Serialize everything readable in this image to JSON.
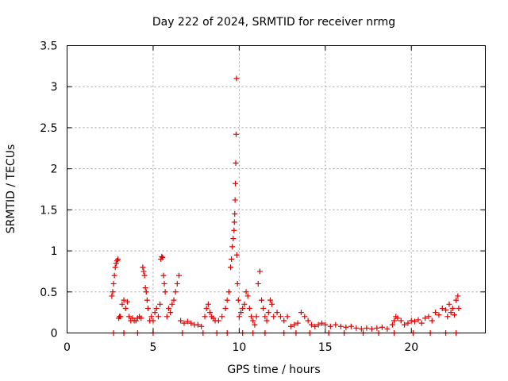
{
  "chart_data": {
    "type": "scatter",
    "title": "Day 222 of 2024, SRMTID for receiver nrmg",
    "xlabel": "GPS time / hours",
    "ylabel": "SRMTID / TECUs",
    "xlim": [
      0,
      24.3
    ],
    "ylim": [
      0,
      3.5
    ],
    "xticks": [
      0,
      5,
      10,
      15,
      20
    ],
    "xtick_labels": [
      "0",
      "5",
      "10",
      "15",
      "20"
    ],
    "yticks": [
      0,
      0.5,
      1,
      1.5,
      2,
      2.5,
      3,
      3.5
    ],
    "ytick_labels": [
      "0",
      "0.5",
      "1",
      "1.5",
      "2",
      "2.5",
      "3",
      "3.5"
    ],
    "grid": true,
    "marker": "+",
    "marker_color": "#e00000",
    "series": [
      {
        "name": "SRMTID",
        "x": [
          2.6,
          2.65,
          2.7,
          2.75,
          2.8,
          2.85,
          2.9,
          2.95,
          3.0,
          3.05,
          3.1,
          3.2,
          3.3,
          3.4,
          3.5,
          3.6,
          3.7,
          3.8,
          3.9,
          4.0,
          4.1,
          4.2,
          4.3,
          4.4,
          4.45,
          4.5,
          4.55,
          4.6,
          4.65,
          4.7,
          4.8,
          4.9,
          5.0,
          5.1,
          5.2,
          5.3,
          5.4,
          5.45,
          5.5,
          5.55,
          5.6,
          5.65,
          5.7,
          5.8,
          5.9,
          6.0,
          6.1,
          6.2,
          6.3,
          6.4,
          6.5,
          6.6,
          6.8,
          7.0,
          7.2,
          7.4,
          7.6,
          7.8,
          8.0,
          8.1,
          8.2,
          8.3,
          8.4,
          8.5,
          8.6,
          8.8,
          9.0,
          9.2,
          9.3,
          9.4,
          9.5,
          9.55,
          9.6,
          9.65,
          9.7,
          9.72,
          9.74,
          9.76,
          9.78,
          9.8,
          9.82,
          9.84,
          9.86,
          9.9,
          9.95,
          10.0,
          10.1,
          10.2,
          10.3,
          10.4,
          10.5,
          10.6,
          10.7,
          10.8,
          10.9,
          11.0,
          11.1,
          11.2,
          11.3,
          11.4,
          11.5,
          11.6,
          11.7,
          11.8,
          11.9,
          12.0,
          12.2,
          12.4,
          12.6,
          12.8,
          13.0,
          13.2,
          13.4,
          13.6,
          13.8,
          14.0,
          14.2,
          14.4,
          14.6,
          14.8,
          15.0,
          15.3,
          15.6,
          15.9,
          16.2,
          16.5,
          16.8,
          17.1,
          17.4,
          17.7,
          18.0,
          18.3,
          18.6,
          18.9,
          19.0,
          19.1,
          19.2,
          19.4,
          19.6,
          19.8,
          20.0,
          20.2,
          20.4,
          20.6,
          20.8,
          21.0,
          21.2,
          21.4,
          21.6,
          21.8,
          22.0,
          22.1,
          22.2,
          22.3,
          22.4,
          22.5,
          22.6,
          22.7,
          22.75,
          2.7,
          3.3,
          4.1,
          5.0,
          6.7,
          7.9,
          8.7,
          9.3,
          10.2,
          10.8,
          11.5,
          12.6,
          13.3,
          14.1,
          15.2,
          16.1,
          17.2,
          18.1,
          19.0,
          20.1,
          21.1,
          22.0,
          22.6
        ],
        "y": [
          0.45,
          0.5,
          0.6,
          0.7,
          0.8,
          0.85,
          0.88,
          0.9,
          0.18,
          0.2,
          0.2,
          0.35,
          0.4,
          0.3,
          0.38,
          0.2,
          0.15,
          0.18,
          0.15,
          0.15,
          0.18,
          0.2,
          0.18,
          0.8,
          0.75,
          0.7,
          0.55,
          0.5,
          0.4,
          0.3,
          0.15,
          0.2,
          0.15,
          0.25,
          0.3,
          0.2,
          0.35,
          0.9,
          0.93,
          0.92,
          0.7,
          0.6,
          0.5,
          0.2,
          0.3,
          0.25,
          0.35,
          0.4,
          0.5,
          0.6,
          0.7,
          0.15,
          0.12,
          0.14,
          0.12,
          0.1,
          0.1,
          0.08,
          0.2,
          0.3,
          0.35,
          0.25,
          0.2,
          0.18,
          0.15,
          0.15,
          0.2,
          0.3,
          0.4,
          0.5,
          0.8,
          0.9,
          1.05,
          1.15,
          1.25,
          1.35,
          1.45,
          1.62,
          1.82,
          2.07,
          2.42,
          3.1,
          0.95,
          0.6,
          0.4,
          0.2,
          0.25,
          0.3,
          0.35,
          0.5,
          0.45,
          0.3,
          0.2,
          0.15,
          0.1,
          0.2,
          0.6,
          0.75,
          0.4,
          0.3,
          0.2,
          0.15,
          0.25,
          0.4,
          0.35,
          0.2,
          0.25,
          0.2,
          0.15,
          0.2,
          0.08,
          0.1,
          0.12,
          0.25,
          0.2,
          0.15,
          0.1,
          0.08,
          0.1,
          0.12,
          0.1,
          0.08,
          0.1,
          0.08,
          0.07,
          0.08,
          0.06,
          0.05,
          0.06,
          0.05,
          0.06,
          0.07,
          0.05,
          0.1,
          0.15,
          0.2,
          0.18,
          0.15,
          0.1,
          0.12,
          0.15,
          0.14,
          0.16,
          0.12,
          0.18,
          0.2,
          0.15,
          0.25,
          0.22,
          0.3,
          0.28,
          0.2,
          0.35,
          0.25,
          0.3,
          0.22,
          0.4,
          0.45,
          0.3,
          0.0,
          0.0,
          0.0,
          0.0,
          0.0,
          0.0,
          0.0,
          0.0,
          0.0,
          0.0,
          0.0,
          0.0,
          0.0,
          0.0,
          0.0,
          0.0,
          0.0,
          0.0,
          0.0,
          0.0,
          0.0,
          0.0,
          0.0
        ]
      }
    ]
  }
}
